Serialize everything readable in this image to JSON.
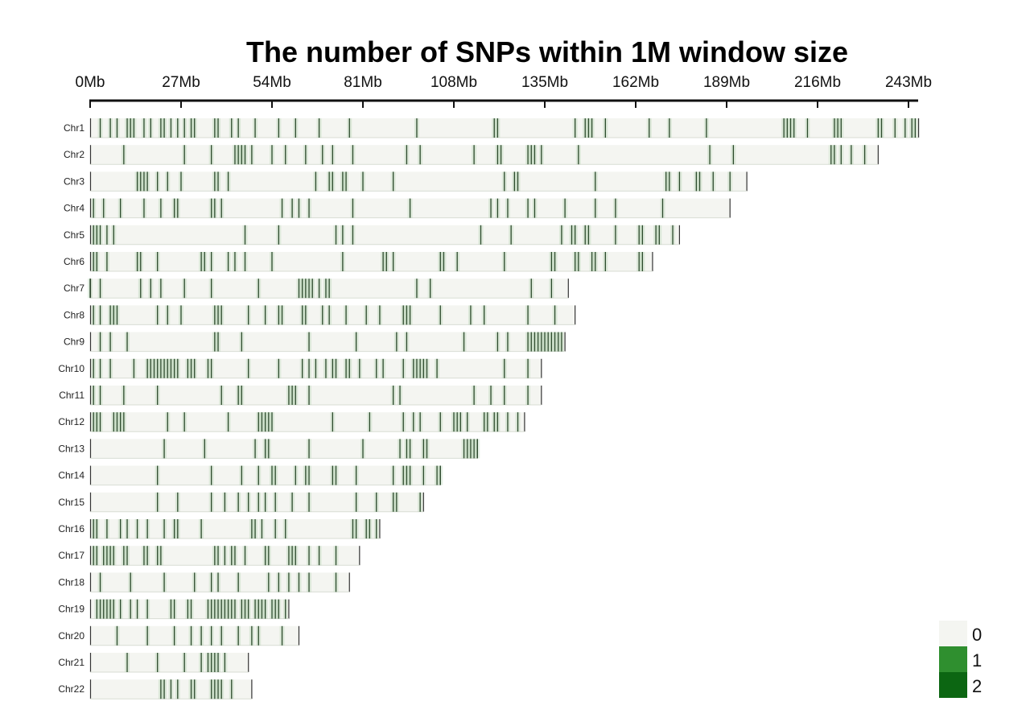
{
  "chart_data": {
    "type": "heatmap",
    "title": "The number of SNPs within 1M window size",
    "x_unit": "Mb",
    "xlim": [
      0,
      243
    ],
    "x_ticks": [
      0,
      27,
      54,
      81,
      108,
      135,
      162,
      189,
      216,
      243
    ],
    "x_tick_labels": [
      "0Mb",
      "27Mb",
      "54Mb",
      "81Mb",
      "108Mb",
      "135Mb",
      "162Mb",
      "189Mb",
      "216Mb",
      "243Mb"
    ],
    "window_size_mb": 1,
    "legend": {
      "placement": "bottom-right",
      "levels": [
        {
          "label": "0",
          "color": "#f4f5f1"
        },
        {
          "label": "1",
          "color": "#2f8f2f"
        },
        {
          "label": "2",
          "color": "#0c6612"
        }
      ]
    },
    "chromosomes": [
      {
        "name": "Chr1",
        "length": 246,
        "snp_windows": [
          3,
          6,
          8,
          11,
          12,
          13,
          16,
          18,
          21,
          22,
          24,
          26,
          28,
          30,
          31,
          37,
          38,
          42,
          44,
          49,
          56,
          61,
          68,
          77,
          97,
          120,
          121,
          144,
          147,
          148,
          149,
          153,
          166,
          172,
          183,
          206,
          207,
          208,
          209,
          213,
          221,
          222,
          223,
          234,
          235,
          239,
          242,
          244,
          245
        ]
      },
      {
        "name": "Chr2",
        "length": 234,
        "snp_windows": [
          10,
          28,
          36,
          43,
          44,
          45,
          46,
          48,
          54,
          58,
          64,
          69,
          72,
          78,
          94,
          98,
          114,
          121,
          122,
          130,
          131,
          132,
          134,
          145,
          184,
          191,
          220,
          221,
          223,
          226,
          230
        ]
      },
      {
        "name": "Chr3",
        "length": 195,
        "snp_windows": [
          14,
          15,
          16,
          17,
          20,
          23,
          27,
          37,
          38,
          41,
          67,
          71,
          72,
          75,
          76,
          81,
          90,
          123,
          126,
          127,
          150,
          171,
          172,
          175,
          180,
          181,
          185,
          190
        ]
      },
      {
        "name": "Chr4",
        "length": 190,
        "snp_windows": [
          1,
          4,
          9,
          16,
          21,
          25,
          26,
          36,
          37,
          39,
          57,
          60,
          62,
          65,
          78,
          95,
          119,
          121,
          124,
          130,
          132,
          141,
          150,
          156,
          170
        ]
      },
      {
        "name": "Chr5",
        "length": 175,
        "snp_windows": [
          1,
          2,
          3,
          5,
          7,
          46,
          56,
          73,
          75,
          78,
          116,
          125,
          140,
          143,
          144,
          147,
          148,
          156,
          163,
          164,
          168,
          169,
          173
        ]
      },
      {
        "name": "Chr6",
        "length": 167,
        "snp_windows": [
          1,
          2,
          5,
          14,
          15,
          20,
          33,
          34,
          36,
          41,
          43,
          46,
          54,
          75,
          87,
          88,
          90,
          104,
          105,
          109,
          123,
          137,
          138,
          144,
          145,
          149,
          150,
          153,
          163,
          164
        ]
      },
      {
        "name": "Chr7",
        "length": 142,
        "snp_windows": [
          0,
          3,
          15,
          18,
          21,
          28,
          36,
          50,
          62,
          63,
          64,
          65,
          66,
          68,
          70,
          71,
          97,
          101,
          131,
          137
        ]
      },
      {
        "name": "Chr8",
        "length": 144,
        "snp_windows": [
          1,
          3,
          6,
          7,
          8,
          20,
          23,
          27,
          37,
          38,
          39,
          47,
          52,
          56,
          57,
          63,
          64,
          69,
          71,
          76,
          82,
          86,
          93,
          94,
          95,
          104,
          113,
          117,
          130,
          138
        ]
      },
      {
        "name": "Chr9",
        "length": 141,
        "snp_windows": [
          3,
          6,
          11,
          37,
          38,
          45,
          65,
          79,
          91,
          94,
          111,
          121,
          124,
          130,
          131,
          132,
          133,
          134,
          135,
          136,
          137,
          138,
          139,
          140
        ]
      },
      {
        "name": "Chr10",
        "length": 134,
        "snp_windows": [
          1,
          3,
          6,
          13,
          17,
          18,
          19,
          20,
          21,
          22,
          23,
          24,
          25,
          26,
          29,
          30,
          31,
          35,
          36,
          47,
          56,
          63,
          65,
          67,
          70,
          72,
          73,
          76,
          77,
          80,
          85,
          87,
          93,
          96,
          97,
          98,
          99,
          100,
          103,
          123,
          130
        ]
      },
      {
        "name": "Chr11",
        "length": 134,
        "snp_windows": [
          1,
          3,
          10,
          20,
          39,
          44,
          45,
          59,
          60,
          61,
          65,
          90,
          92,
          114,
          119,
          123,
          130
        ]
      },
      {
        "name": "Chr12",
        "length": 129,
        "snp_windows": [
          1,
          2,
          3,
          7,
          8,
          9,
          10,
          23,
          28,
          41,
          50,
          51,
          52,
          53,
          54,
          72,
          83,
          93,
          96,
          98,
          104,
          108,
          109,
          110,
          112,
          117,
          118,
          120,
          121,
          124,
          127
        ]
      },
      {
        "name": "Chr13",
        "length": 115,
        "snp_windows": [
          22,
          34,
          49,
          52,
          53,
          65,
          81,
          92,
          94,
          95,
          99,
          100,
          111,
          112,
          113,
          114,
          115
        ]
      },
      {
        "name": "Chr14",
        "length": 104,
        "snp_windows": [
          20,
          36,
          45,
          50,
          54,
          55,
          61,
          64,
          65,
          72,
          73,
          79,
          90,
          93,
          94,
          95,
          99,
          103,
          104
        ]
      },
      {
        "name": "Chr15",
        "length": 99,
        "snp_windows": [
          20,
          26,
          36,
          40,
          44,
          47,
          50,
          52,
          55,
          60,
          65,
          79,
          85,
          90,
          91,
          98
        ]
      },
      {
        "name": "Chr16",
        "length": 86,
        "snp_windows": [
          1,
          2,
          5,
          9,
          11,
          14,
          17,
          22,
          25,
          26,
          33,
          48,
          49,
          51,
          55,
          58,
          78,
          79,
          82,
          83,
          85
        ]
      },
      {
        "name": "Chr17",
        "length": 80,
        "snp_windows": [
          1,
          2,
          4,
          5,
          6,
          7,
          10,
          11,
          16,
          17,
          20,
          21,
          37,
          38,
          40,
          42,
          43,
          46,
          52,
          53,
          59,
          60,
          61,
          65,
          68,
          73
        ]
      },
      {
        "name": "Chr18",
        "length": 77,
        "snp_windows": [
          3,
          12,
          22,
          31,
          36,
          38,
          44,
          53,
          56,
          59,
          62,
          65,
          73
        ]
      },
      {
        "name": "Chr19",
        "length": 59,
        "snp_windows": [
          2,
          3,
          4,
          5,
          6,
          7,
          9,
          12,
          14,
          17,
          24,
          25,
          29,
          30,
          35,
          36,
          37,
          38,
          39,
          40,
          41,
          42,
          43,
          45,
          46,
          47,
          49,
          50,
          51,
          52,
          54,
          55,
          56,
          58
        ]
      },
      {
        "name": "Chr20",
        "length": 62,
        "snp_windows": [
          8,
          17,
          25,
          30,
          33,
          36,
          39,
          44,
          48,
          50,
          57
        ]
      },
      {
        "name": "Chr21",
        "length": 47,
        "snp_windows": [
          11,
          20,
          28,
          33,
          35,
          36,
          37,
          38,
          40
        ]
      },
      {
        "name": "Chr22",
        "length": 48,
        "snp_windows": [
          21,
          22,
          24,
          26,
          30,
          31,
          36,
          37,
          38,
          39,
          42
        ]
      }
    ]
  }
}
